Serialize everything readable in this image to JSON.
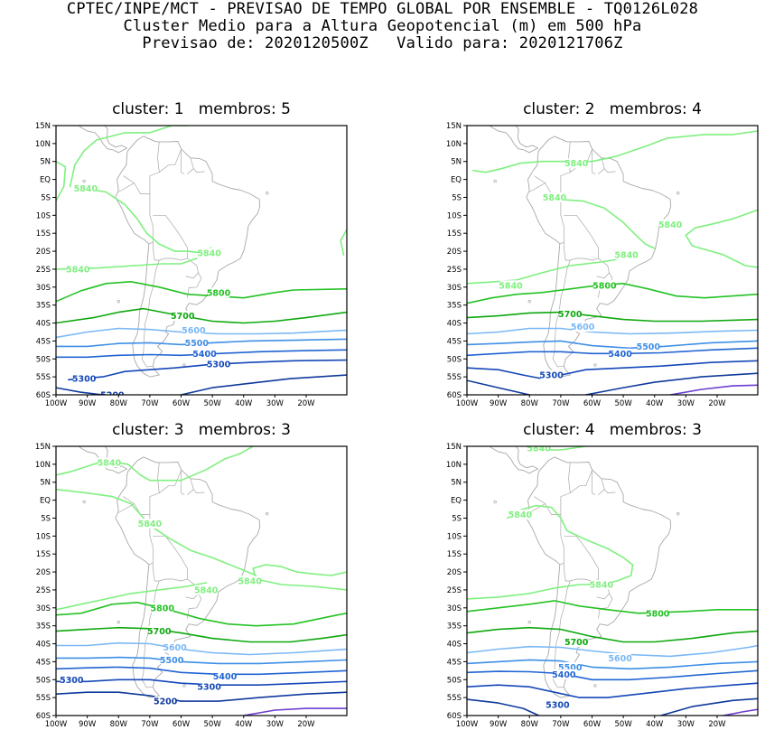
{
  "header": {
    "line1": "CPTEC/INPE/MCT - PREVISAO DE TEMPO GLOBAL POR ENSEMBLE - TQ0126L028",
    "line2": "Cluster Medio para a Altura Geopotencial (m) em 500 hPa",
    "line3": "Previsao de: 2020120500Z   Valido para: 2020121706Z"
  },
  "lat_labels": [
    "15N",
    "10N",
    "5N",
    "EQ",
    "5S",
    "10S",
    "15S",
    "20S",
    "25S",
    "30S",
    "35S",
    "40S",
    "45S",
    "50S",
    "55S",
    "60S"
  ],
  "lon_labels": [
    "100W",
    "90W",
    "80W",
    "70W",
    "60W",
    "50W",
    "40W",
    "30W",
    "20W"
  ],
  "colors": {
    "5840": "#7ff07f",
    "5800": "#24c224",
    "5700": "#0ea80e",
    "5600": "#7ab8f5",
    "5500": "#3f8fe6",
    "5400": "#2064d2",
    "5300": "#1447b8",
    "5200": "#103a9c",
    "5100": "#6a3fd0",
    "coast": "#a8a8a8"
  },
  "panels": [
    {
      "title": "cluster: 1   membros: 5",
      "labels": [
        {
          "text": "5840",
          "c": "5840",
          "lon": -90.5,
          "lat": -2.5
        },
        {
          "text": "5840",
          "c": "5840",
          "lon": -51,
          "lat": -20.5
        },
        {
          "text": "5840",
          "c": "5840",
          "lon": -93,
          "lat": -25
        },
        {
          "text": "5800",
          "c": "5800",
          "lon": -48,
          "lat": -31.5
        },
        {
          "text": "5700",
          "c": "5700",
          "lon": -59.5,
          "lat": -38
        },
        {
          "text": "5600",
          "c": "5600",
          "lon": -56,
          "lat": -42
        },
        {
          "text": "5500",
          "c": "5500",
          "lon": -55,
          "lat": -45.5
        },
        {
          "text": "5400",
          "c": "5400",
          "lon": -52.5,
          "lat": -48.5
        },
        {
          "text": "5300",
          "c": "5300",
          "lon": -48,
          "lat": -51.5
        },
        {
          "text": "5300",
          "c": "5300",
          "lon": -91,
          "lat": -55.5
        },
        {
          "text": "5200",
          "c": "5200",
          "lon": -82,
          "lat": -60
        }
      ]
    },
    {
      "title": "cluster: 2   membros: 4",
      "labels": [
        {
          "text": "5840",
          "c": "5840",
          "lon": -65,
          "lat": 4.5
        },
        {
          "text": "5840",
          "c": "5840",
          "lon": -72,
          "lat": -5
        },
        {
          "text": "5840",
          "c": "5840",
          "lon": -35,
          "lat": -12.5
        },
        {
          "text": "5840",
          "c": "5840",
          "lon": -49,
          "lat": -21
        },
        {
          "text": "5840",
          "c": "5840",
          "lon": -86,
          "lat": -29.5
        },
        {
          "text": "5800",
          "c": "5800",
          "lon": -56,
          "lat": -29.5
        },
        {
          "text": "5700",
          "c": "5700",
          "lon": -67,
          "lat": -37.5
        },
        {
          "text": "5600",
          "c": "5600",
          "lon": -63,
          "lat": -41
        },
        {
          "text": "5500",
          "c": "5500",
          "lon": -42,
          "lat": -46.5
        },
        {
          "text": "5400",
          "c": "5400",
          "lon": -51,
          "lat": -48.5
        },
        {
          "text": "5300",
          "c": "5300",
          "lon": -73,
          "lat": -54.5
        }
      ]
    },
    {
      "title": "cluster: 3   membros: 3",
      "labels": [
        {
          "text": "5840",
          "c": "5840",
          "lon": -83,
          "lat": 10.5
        },
        {
          "text": "5840",
          "c": "5840",
          "lon": -70,
          "lat": -6.5
        },
        {
          "text": "5840",
          "c": "5840",
          "lon": -38,
          "lat": -22.5
        },
        {
          "text": "5840",
          "c": "5840",
          "lon": -52,
          "lat": -25
        },
        {
          "text": "5800",
          "c": "5800",
          "lon": -66,
          "lat": -30
        },
        {
          "text": "5700",
          "c": "5700",
          "lon": -67,
          "lat": -36.5
        },
        {
          "text": "5600",
          "c": "5600",
          "lon": -62,
          "lat": -41
        },
        {
          "text": "5500",
          "c": "5500",
          "lon": -63,
          "lat": -44.5
        },
        {
          "text": "5400",
          "c": "5400",
          "lon": -46,
          "lat": -49
        },
        {
          "text": "5300",
          "c": "5300",
          "lon": -51,
          "lat": -52
        },
        {
          "text": "5300",
          "c": "5300",
          "lon": -95,
          "lat": -50
        },
        {
          "text": "5200",
          "c": "5200",
          "lon": -65,
          "lat": -56
        }
      ]
    },
    {
      "title": "cluster: 4   membros: 3",
      "labels": [
        {
          "text": "5840",
          "c": "5840",
          "lon": -77,
          "lat": 14.5
        },
        {
          "text": "5840",
          "c": "5840",
          "lon": -83,
          "lat": -4
        },
        {
          "text": "5840",
          "c": "5840",
          "lon": -57,
          "lat": -23.5
        },
        {
          "text": "5800",
          "c": "5800",
          "lon": -39,
          "lat": -31.5
        },
        {
          "text": "5700",
          "c": "5700",
          "lon": -65,
          "lat": -39.5
        },
        {
          "text": "5600",
          "c": "5600",
          "lon": -51,
          "lat": -44
        },
        {
          "text": "5500",
          "c": "5500",
          "lon": -67,
          "lat": -46.5
        },
        {
          "text": "5400",
          "c": "5400",
          "lon": -69,
          "lat": -48.5
        },
        {
          "text": "5300",
          "c": "5300",
          "lon": -71,
          "lat": -57
        }
      ]
    }
  ]
}
